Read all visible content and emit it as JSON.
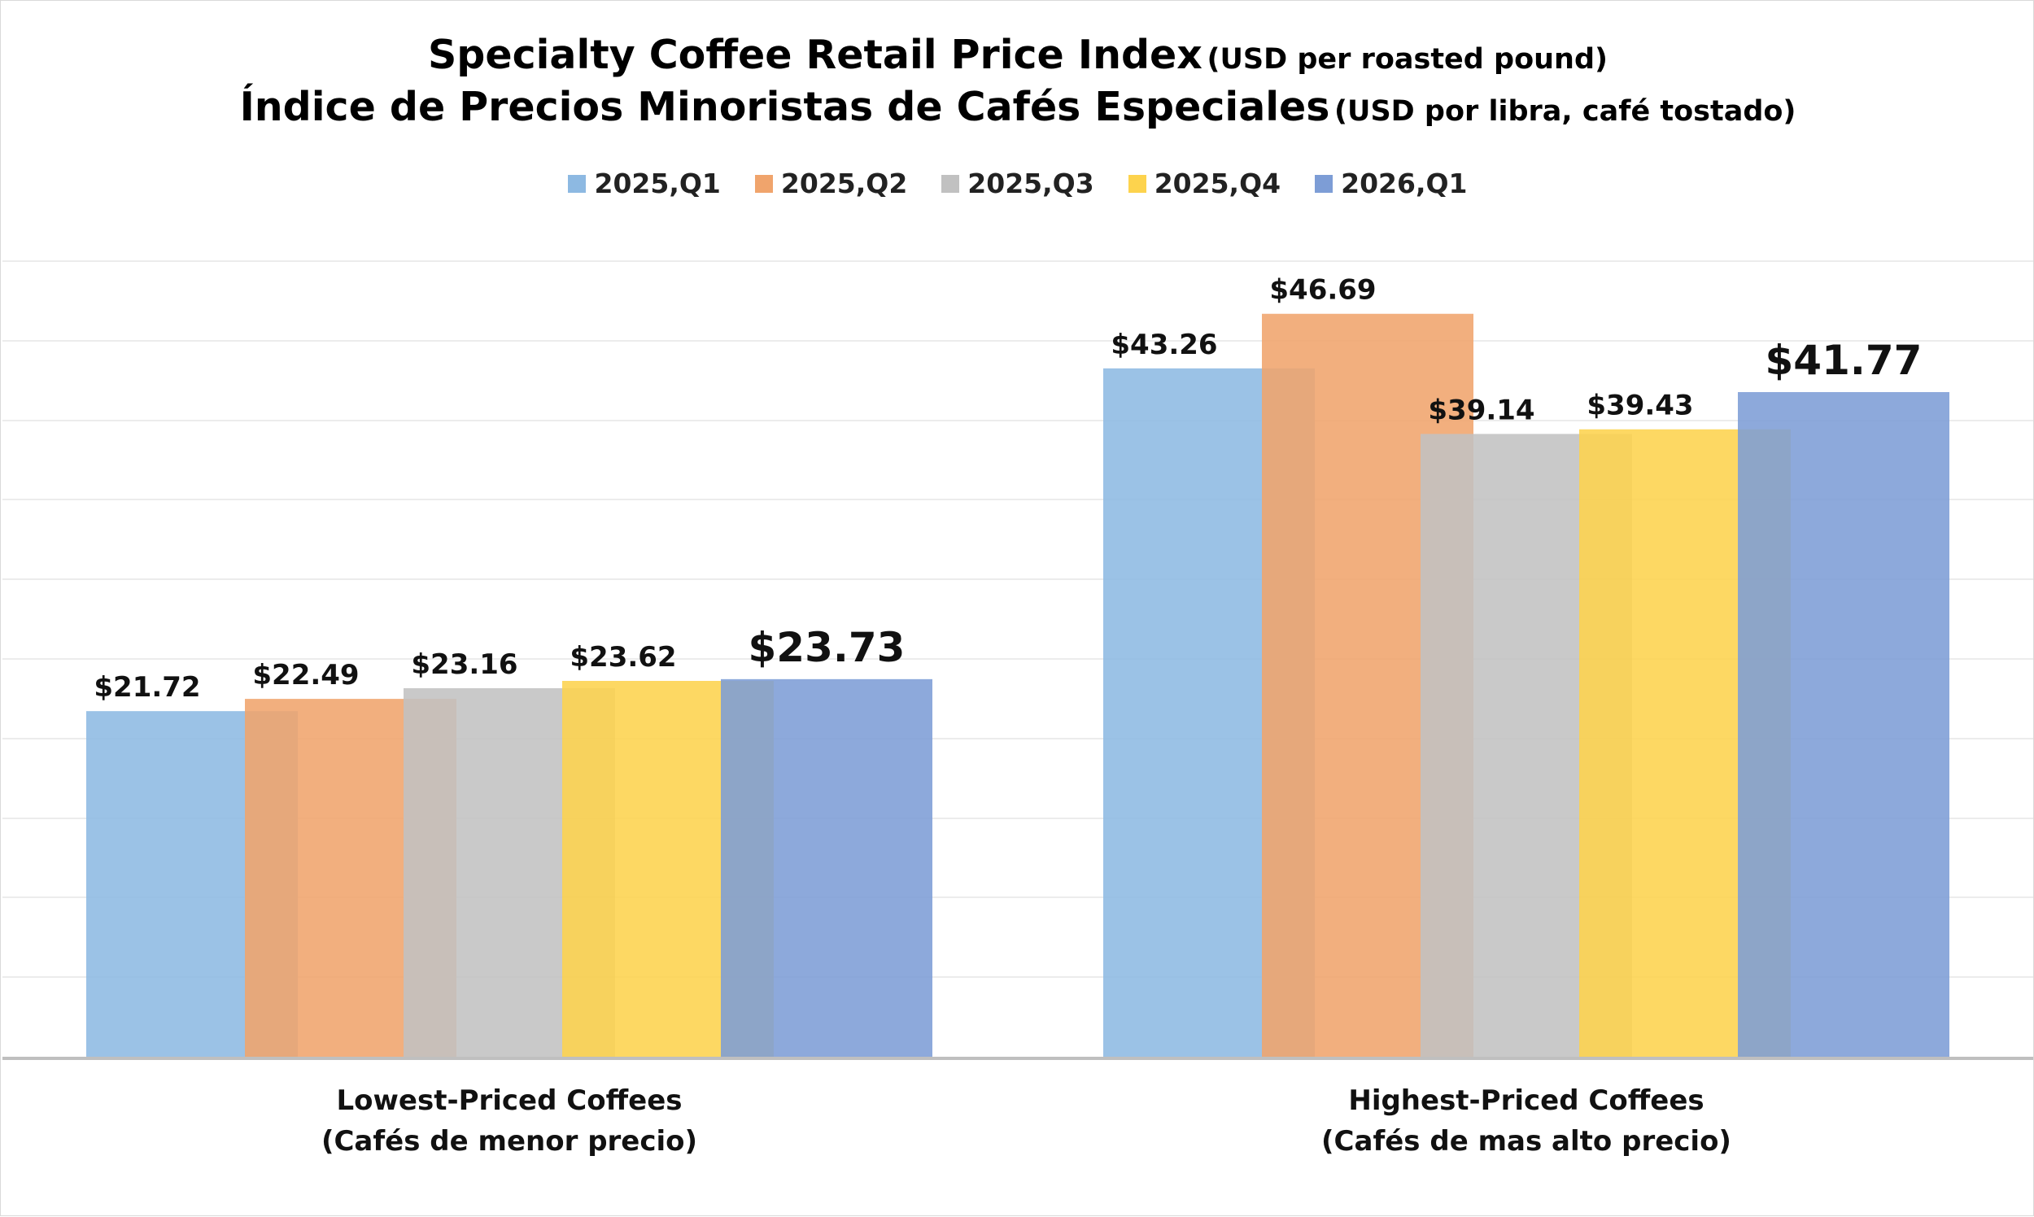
{
  "title": {
    "line1_main": "Specialty Coffee Retail Price Index",
    "line1_sub": "(USD per roasted pound)",
    "line2_main": "Índice de Precios Minoristas de Cafés Especiales",
    "line2_sub": "(USD por libra, café tostado)"
  },
  "colors": {
    "2025,Q1": "#8db9e2",
    "2025,Q2": "#f0a46c",
    "2025,Q3": "#c1c1c1",
    "2025,Q4": "#fdd34d",
    "2026,Q1": "#7d9dd6",
    "grid": "#ececec",
    "baseline": "#bfbfbf"
  },
  "chart_data": {
    "type": "bar",
    "categories": [
      [
        "Lowest-Priced Coffees",
        "(Cafés de menor precio)"
      ],
      [
        "Highest-Priced Coffees",
        "(Cafés de mas alto precio)"
      ]
    ],
    "series": [
      {
        "name": "2025,Q1",
        "values": [
          21.72,
          43.26
        ],
        "labels": [
          "$21.72",
          "$43.26"
        ]
      },
      {
        "name": "2025,Q2",
        "values": [
          22.49,
          46.69
        ],
        "labels": [
          "$22.49",
          "$46.69"
        ]
      },
      {
        "name": "2025,Q3",
        "values": [
          23.16,
          39.14
        ],
        "labels": [
          "$23.16",
          "$39.14"
        ]
      },
      {
        "name": "2025,Q4",
        "values": [
          23.62,
          39.43
        ],
        "labels": [
          "$23.62",
          "$39.43"
        ]
      },
      {
        "name": "2026,Q1",
        "values": [
          23.73,
          41.77
        ],
        "labels": [
          "$23.73",
          "$41.77"
        ],
        "emphasized": true
      }
    ],
    "ylim": [
      0,
      50
    ],
    "bar_overlap": true,
    "grid": true,
    "legend": "top-center",
    "xlabel": "",
    "ylabel": ""
  }
}
